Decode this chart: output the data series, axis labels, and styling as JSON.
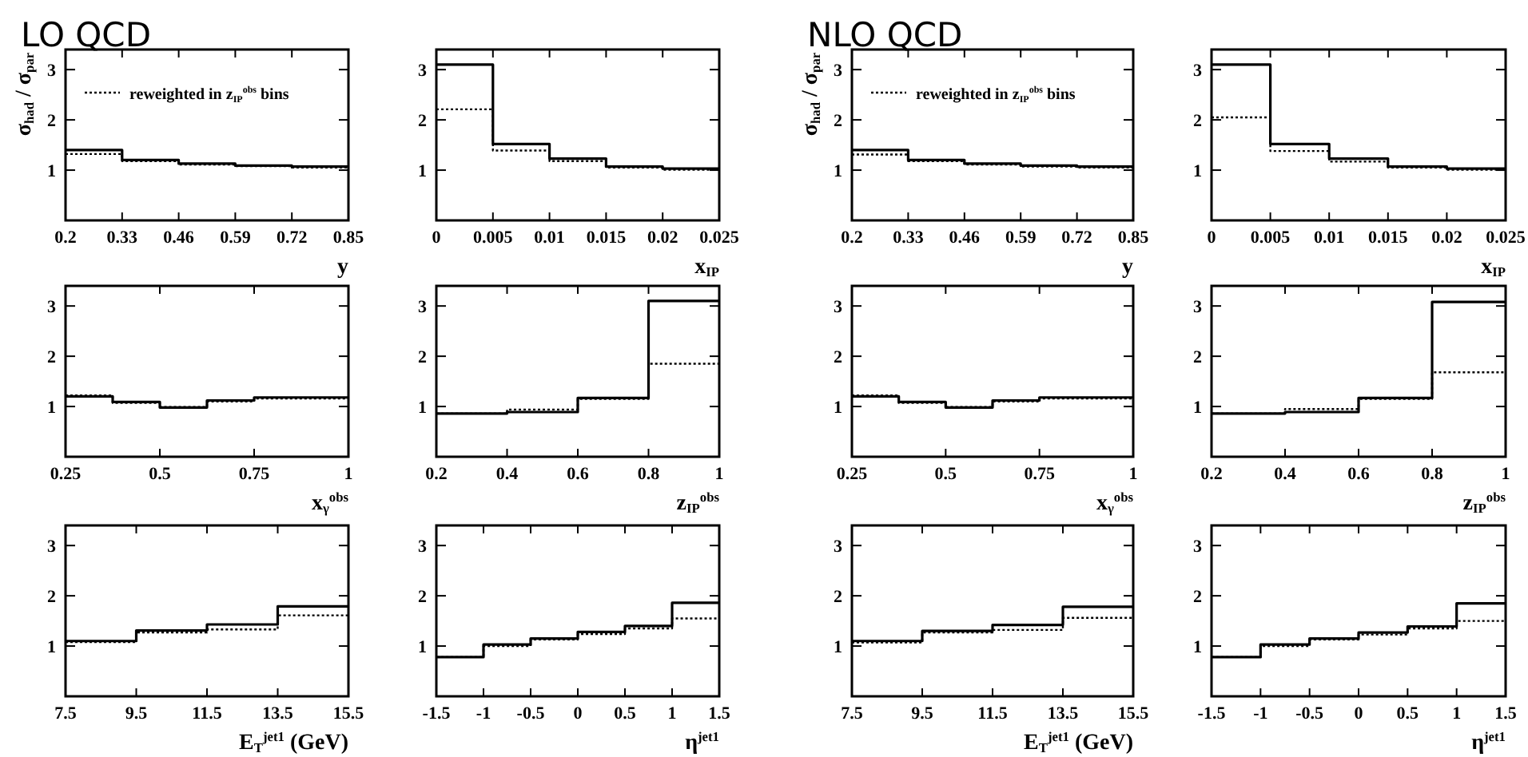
{
  "chart_data": [
    {
      "type": "step",
      "title": "LO QCD",
      "ylabel": "σ$_{had}$ / σ$_{par}$",
      "xlabel": "y",
      "legend": "top left",
      "x": [
        0.2,
        0.33,
        0.46,
        0.59,
        0.72,
        0.85
      ],
      "xlim": [
        0.2,
        0.85
      ],
      "xticks": [
        0.2,
        0.33,
        0.46,
        0.59,
        0.72,
        0.85
      ],
      "ylim": [
        0,
        3.4
      ],
      "yticks": [
        1,
        2,
        3
      ],
      "series": [
        {
          "color": "#000000",
          "line_style": "solid",
          "values": [
            1.4,
            1.2,
            1.13,
            1.09,
            1.07,
            1.07
          ]
        },
        {
          "name": "reweighted in z$_{IP}$$^{obs}$ bins",
          "color": "#000000",
          "line_style": "dotted",
          "values": [
            1.32,
            1.18,
            1.11,
            1.08,
            1.05,
            1.05
          ]
        }
      ]
    },
    {
      "type": "step",
      "xlabel": "x$_{IP}$",
      "x": [
        0,
        0.005,
        0.01,
        0.015,
        0.02,
        0.025
      ],
      "xlim": [
        0,
        0.025
      ],
      "xticks": [
        0,
        0.005,
        0.01,
        0.015,
        0.02,
        0.025
      ],
      "ylim": [
        0,
        3.4
      ],
      "yticks": [
        1,
        2,
        3
      ],
      "series": [
        {
          "color": "#000000",
          "line_style": "solid",
          "values": [
            3.1,
            1.52,
            1.23,
            1.07,
            1.03,
            1.03
          ]
        },
        {
          "color": "#000000",
          "line_style": "dotted",
          "values": [
            2.21,
            1.39,
            1.18,
            1.05,
            1.01,
            1.01
          ]
        }
      ]
    },
    {
      "type": "step",
      "title": "NLO QCD",
      "ylabel": "σ$_{had}$ / σ$_{par}$",
      "xlabel": "y",
      "legend": "top left",
      "x": [
        0.2,
        0.33,
        0.46,
        0.59,
        0.72,
        0.85
      ],
      "xlim": [
        0.2,
        0.85
      ],
      "xticks": [
        0.2,
        0.33,
        0.46,
        0.59,
        0.72,
        0.85
      ],
      "ylim": [
        0,
        3.4
      ],
      "yticks": [
        1,
        2,
        3
      ],
      "series": [
        {
          "color": "#000000",
          "line_style": "solid",
          "values": [
            1.4,
            1.2,
            1.13,
            1.09,
            1.07,
            1.07
          ]
        },
        {
          "name": "reweighted in z$_{IP}$$^{obs}$ bins",
          "color": "#000000",
          "line_style": "dotted",
          "values": [
            1.31,
            1.18,
            1.11,
            1.07,
            1.05,
            1.05
          ]
        }
      ]
    },
    {
      "type": "step",
      "xlabel": "x$_{IP}$",
      "x": [
        0,
        0.005,
        0.01,
        0.015,
        0.02,
        0.025
      ],
      "xlim": [
        0,
        0.025
      ],
      "xticks": [
        0,
        0.005,
        0.01,
        0.015,
        0.02,
        0.025
      ],
      "ylim": [
        0,
        3.4
      ],
      "yticks": [
        1,
        2,
        3
      ],
      "series": [
        {
          "color": "#000000",
          "line_style": "solid",
          "values": [
            3.1,
            1.52,
            1.23,
            1.07,
            1.03,
            1.03
          ]
        },
        {
          "color": "#000000",
          "line_style": "dotted",
          "values": [
            2.05,
            1.38,
            1.17,
            1.05,
            1.01,
            1.01
          ]
        }
      ]
    },
    {
      "type": "step",
      "xlabel": "x$_{γ}$$^{obs}$",
      "x": [
        0.25,
        0.375,
        0.5,
        0.625,
        0.75,
        1
      ],
      "xlim": [
        0.25,
        1
      ],
      "xticks": [
        0.25,
        0.5,
        0.75,
        1
      ],
      "ylim": [
        0,
        3.4
      ],
      "yticks": [
        1,
        2,
        3
      ],
      "series": [
        {
          "color": "#000000",
          "line_style": "solid",
          "values": [
            1.2,
            1.09,
            0.98,
            1.12,
            1.18,
            1.18
          ]
        },
        {
          "color": "#000000",
          "line_style": "dotted",
          "values": [
            1.22,
            1.07,
            0.99,
            1.1,
            1.16,
            1.16
          ]
        }
      ]
    },
    {
      "type": "step",
      "xlabel": "z$_{IP}$$^{obs}$",
      "x": [
        0.2,
        0.4,
        0.6,
        0.8,
        1
      ],
      "xlim": [
        0.2,
        1
      ],
      "xticks": [
        0.2,
        0.4,
        0.6,
        0.8,
        1
      ],
      "ylim": [
        0,
        3.4
      ],
      "yticks": [
        1,
        2,
        3
      ],
      "series": [
        {
          "color": "#000000",
          "line_style": "solid",
          "values": [
            0.86,
            0.89,
            1.17,
            3.1,
            3.1
          ]
        },
        {
          "color": "#000000",
          "line_style": "dotted",
          "values": [
            0.86,
            0.94,
            1.15,
            1.85,
            1.85
          ]
        }
      ]
    },
    {
      "type": "step",
      "xlabel": "x$_{γ}$$^{obs}$",
      "x": [
        0.25,
        0.375,
        0.5,
        0.625,
        0.75,
        1
      ],
      "xlim": [
        0.25,
        1
      ],
      "xticks": [
        0.25,
        0.5,
        0.75,
        1
      ],
      "ylim": [
        0,
        3.4
      ],
      "yticks": [
        1,
        2,
        3
      ],
      "series": [
        {
          "color": "#000000",
          "line_style": "solid",
          "values": [
            1.2,
            1.09,
            0.98,
            1.12,
            1.18,
            1.18
          ]
        },
        {
          "color": "#000000",
          "line_style": "dotted",
          "values": [
            1.22,
            1.07,
            0.99,
            1.1,
            1.16,
            1.16
          ]
        }
      ]
    },
    {
      "type": "step",
      "xlabel": "z$_{IP}$$^{obs}$",
      "x": [
        0.2,
        0.4,
        0.6,
        0.8,
        1
      ],
      "xlim": [
        0.2,
        1
      ],
      "xticks": [
        0.2,
        0.4,
        0.6,
        0.8,
        1
      ],
      "ylim": [
        0,
        3.4
      ],
      "yticks": [
        1,
        2,
        3
      ],
      "series": [
        {
          "color": "#000000",
          "line_style": "solid",
          "values": [
            0.86,
            0.89,
            1.17,
            3.08,
            3.08
          ]
        },
        {
          "color": "#000000",
          "line_style": "dotted",
          "values": [
            0.86,
            0.95,
            1.15,
            1.68,
            1.68
          ]
        }
      ]
    },
    {
      "type": "step",
      "xlabel": "E$_{T}$$^{jet1}$ (GeV)",
      "x": [
        7.5,
        9.5,
        11.5,
        13.5,
        15.5
      ],
      "xlim": [
        7.5,
        15.5
      ],
      "xticks": [
        7.5,
        9.5,
        11.5,
        13.5,
        15.5
      ],
      "ylim": [
        0,
        3.4
      ],
      "yticks": [
        1,
        2,
        3
      ],
      "series": [
        {
          "color": "#000000",
          "line_style": "solid",
          "values": [
            1.1,
            1.31,
            1.43,
            1.79,
            1.79
          ]
        },
        {
          "color": "#000000",
          "line_style": "dotted",
          "values": [
            1.08,
            1.27,
            1.33,
            1.61,
            1.61
          ]
        }
      ]
    },
    {
      "type": "step",
      "xlabel": "η$^{jet1}$",
      "x": [
        -1.5,
        -1,
        -0.5,
        0,
        0.5,
        1,
        1.5
      ],
      "xlim": [
        -1.5,
        1.5
      ],
      "xticks": [
        -1.5,
        -1,
        -0.5,
        0,
        0.5,
        1,
        1.5
      ],
      "ylim": [
        0,
        3.4
      ],
      "yticks": [
        1,
        2,
        3
      ],
      "series": [
        {
          "color": "#000000",
          "line_style": "solid",
          "values": [
            0.78,
            1.03,
            1.15,
            1.28,
            1.4,
            1.86,
            1.86
          ]
        },
        {
          "color": "#000000",
          "line_style": "dotted",
          "values": [
            0.78,
            1.0,
            1.13,
            1.24,
            1.35,
            1.55,
            1.55
          ]
        }
      ]
    },
    {
      "type": "step",
      "xlabel": "E$_{T}$$^{jet1}$ (GeV)",
      "x": [
        7.5,
        9.5,
        11.5,
        13.5,
        15.5
      ],
      "xlim": [
        7.5,
        15.5
      ],
      "xticks": [
        7.5,
        9.5,
        11.5,
        13.5,
        15.5
      ],
      "ylim": [
        0,
        3.4
      ],
      "yticks": [
        1,
        2,
        3
      ],
      "series": [
        {
          "color": "#000000",
          "line_style": "solid",
          "values": [
            1.1,
            1.3,
            1.42,
            1.78,
            1.78
          ]
        },
        {
          "color": "#000000",
          "line_style": "dotted",
          "values": [
            1.07,
            1.27,
            1.32,
            1.56,
            1.56
          ]
        }
      ]
    },
    {
      "type": "step",
      "xlabel": "η$^{jet1}$",
      "x": [
        -1.5,
        -1,
        -0.5,
        0,
        0.5,
        1,
        1.5
      ],
      "xlim": [
        -1.5,
        1.5
      ],
      "xticks": [
        -1.5,
        -1,
        -0.5,
        0,
        0.5,
        1,
        1.5
      ],
      "ylim": [
        0,
        3.4
      ],
      "yticks": [
        1,
        2,
        3
      ],
      "series": [
        {
          "color": "#000000",
          "line_style": "solid",
          "values": [
            0.78,
            1.03,
            1.15,
            1.27,
            1.39,
            1.85,
            1.85
          ]
        },
        {
          "color": "#000000",
          "line_style": "dotted",
          "values": [
            0.78,
            1.0,
            1.13,
            1.23,
            1.35,
            1.5,
            1.5
          ]
        }
      ]
    }
  ]
}
